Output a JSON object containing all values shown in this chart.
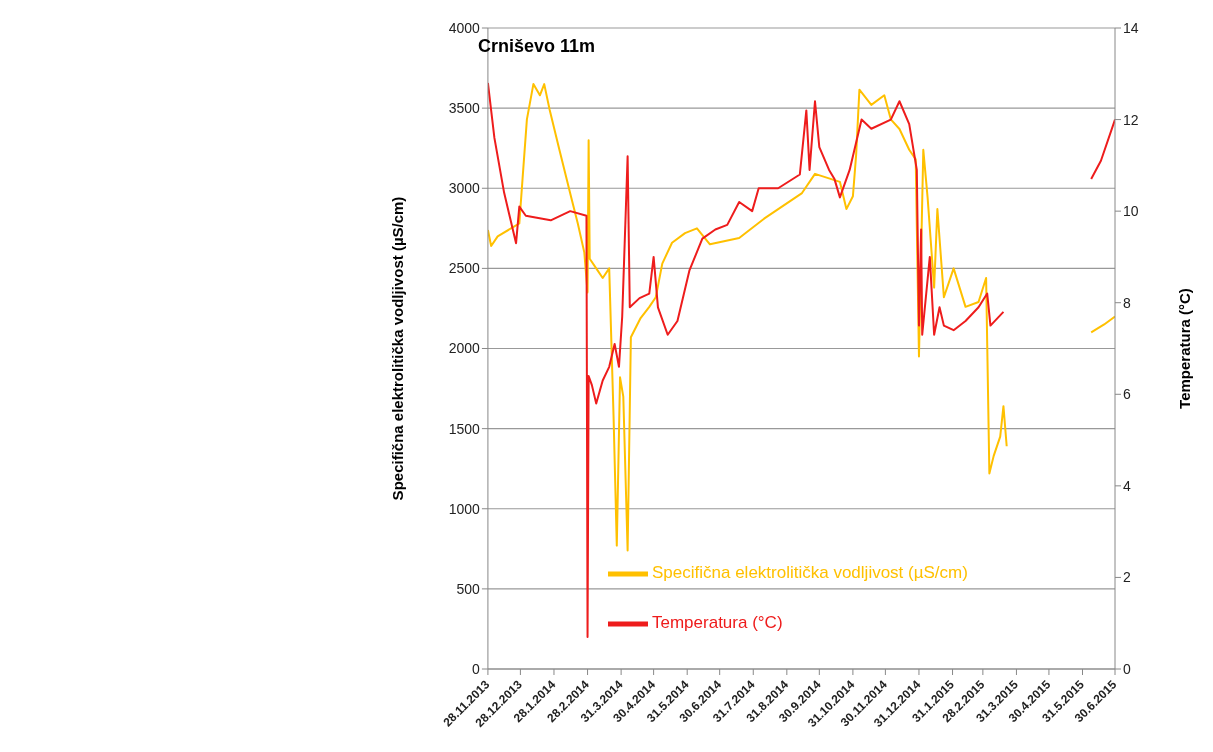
{
  "chart_data": {
    "type": "line",
    "title": "Crniševo 11m",
    "ylabel": "Specifična elektrolitička vodljivost (µS/cm)",
    "y2label": "Temperatura (°C)",
    "xlim": [
      "2013-11-28",
      "2015-06-30"
    ],
    "xticks": [
      {
        "value": "2013-11-28",
        "label": "28.11.2013"
      },
      {
        "value": "2013-12-28",
        "label": "28.12.2013"
      },
      {
        "value": "2014-01-28",
        "label": "28.1.2014"
      },
      {
        "value": "2014-02-28",
        "label": "28.2.2014"
      },
      {
        "value": "2014-03-31",
        "label": "31.3.2014"
      },
      {
        "value": "2014-04-30",
        "label": "30.4.2014"
      },
      {
        "value": "2014-05-31",
        "label": "31.5.2014"
      },
      {
        "value": "2014-06-30",
        "label": "30.6.2014"
      },
      {
        "value": "2014-07-31",
        "label": "31.7.2014"
      },
      {
        "value": "2014-08-31",
        "label": "31.8.2014"
      },
      {
        "value": "2014-09-30",
        "label": "30.9.2014"
      },
      {
        "value": "2014-10-31",
        "label": "31.10.2014"
      },
      {
        "value": "2014-11-30",
        "label": "30.11.2014"
      },
      {
        "value": "2014-12-31",
        "label": "31.12.2014"
      },
      {
        "value": "2015-01-31",
        "label": "31.1.2015"
      },
      {
        "value": "2015-02-28",
        "label": "28.2.2015"
      },
      {
        "value": "2015-03-31",
        "label": "31.3.2015"
      },
      {
        "value": "2015-04-30",
        "label": "30.4.2015"
      },
      {
        "value": "2015-05-31",
        "label": "31.5.2015"
      },
      {
        "value": "2015-06-30",
        "label": "30.6.2015"
      }
    ],
    "ylim": [
      0,
      4000
    ],
    "yticks": [
      0,
      500,
      1000,
      1500,
      2000,
      2500,
      3000,
      3500,
      4000
    ],
    "y2lim": [
      0,
      14
    ],
    "y2ticks": [
      0,
      2,
      4,
      6,
      8,
      10,
      12,
      14
    ],
    "grid": "y",
    "legend": "bottom right",
    "marker": "none",
    "line_style": "solid",
    "series": [
      {
        "name": "Specifična elektrolitička vodljivost (µS/cm)",
        "color": "#ffc000",
        "x": [
          "2013-11-28",
          "2013-12-01",
          "2013-12-07",
          "2013-12-22",
          "2013-12-27",
          "2013-12-30",
          "2014-01-03",
          "2014-01-09",
          "2014-01-15",
          "2014-01-19",
          "2014-01-24",
          "2014-02-02",
          "2014-02-13",
          "2014-02-19",
          "2014-02-25",
          "2014-02-28",
          "2014-03-01",
          "2014-03-02",
          "2014-03-08",
          "2014-03-14",
          "2014-03-20",
          "2014-03-24",
          "2014-03-27",
          "2014-03-30",
          "2014-04-02",
          "2014-04-06",
          "2014-04-09",
          "2014-04-18",
          "2014-04-26",
          "2014-05-02",
          "2014-05-08",
          "2014-05-17",
          "2014-05-29",
          "2014-06-09",
          "2014-06-21",
          "2014-07-18",
          "2014-08-10",
          "2014-09-14",
          "2014-09-26",
          "2014-10-19",
          "2014-10-25",
          "2014-10-31",
          "2014-11-03",
          "2014-11-06",
          "2014-11-17",
          "2014-11-29",
          "2014-12-05",
          "2014-12-13",
          "2014-12-22",
          "2014-12-28",
          "2014-12-31",
          "2015-01-04",
          "2015-01-08",
          "2015-01-14",
          "2015-01-17",
          "2015-01-23",
          "2015-02-01",
          "2015-02-12",
          "2015-02-24",
          "2015-03-03",
          "2015-03-06",
          "2015-03-10",
          "2015-03-16",
          "2015-03-19",
          "2015-03-22",
          "2015-04-30",
          "2015-06-08",
          "2015-06-20",
          "2015-06-30"
        ],
        "values": [
          2740,
          2640,
          2700,
          2760,
          2780,
          3060,
          3430,
          3650,
          3580,
          3650,
          3490,
          3240,
          2940,
          2780,
          2600,
          2350,
          3300,
          2560,
          2500,
          2440,
          2500,
          1580,
          770,
          1820,
          1700,
          740,
          2070,
          2190,
          2260,
          2320,
          2530,
          2660,
          2720,
          2750,
          2650,
          2690,
          2810,
          2970,
          3090,
          3040,
          2870,
          2950,
          3210,
          3615,
          3520,
          3580,
          3430,
          3370,
          3240,
          3180,
          1950,
          3240,
          2940,
          2380,
          2870,
          2320,
          2500,
          2260,
          2290,
          2440,
          1220,
          1330,
          1450,
          1640,
          1390,
          null,
          2100,
          2150,
          2200
        ]
      },
      {
        "name": "Temperatura (°C)",
        "color": "#ee1c1c",
        "axis": "y2",
        "x": [
          "2013-11-28",
          "2013-12-04",
          "2013-12-13",
          "2013-12-24",
          "2013-12-27",
          "2014-01-02",
          "2014-01-25",
          "2014-02-12",
          "2014-02-27",
          "2014-02-28",
          "2014-03-01",
          "2014-03-04",
          "2014-03-08",
          "2014-03-14",
          "2014-03-20",
          "2014-03-25",
          "2014-03-29",
          "2014-04-01",
          "2014-04-06",
          "2014-04-08",
          "2014-04-17",
          "2014-04-26",
          "2014-04-30",
          "2014-05-04",
          "2014-05-13",
          "2014-05-22",
          "2014-06-02",
          "2014-06-14",
          "2014-06-26",
          "2014-07-07",
          "2014-07-18",
          "2014-07-30",
          "2014-08-05",
          "2014-08-23",
          "2014-09-12",
          "2014-09-18",
          "2014-09-21",
          "2014-09-26",
          "2014-09-30",
          "2014-10-09",
          "2014-10-14",
          "2014-10-19",
          "2014-10-28",
          "2014-11-08",
          "2014-11-17",
          "2014-12-05",
          "2014-12-13",
          "2014-12-22",
          "2014-12-29",
          "2014-12-31",
          "2015-01-02",
          "2015-01-03",
          "2015-01-10",
          "2015-01-14",
          "2015-01-19",
          "2015-01-23",
          "2015-02-01",
          "2015-02-12",
          "2015-02-24",
          "2015-03-04",
          "2015-03-07",
          "2015-03-19",
          "2015-04-30",
          "2015-06-08",
          "2015-06-17",
          "2015-06-30"
        ],
        "values": [
          12.8,
          11.6,
          10.4,
          9.3,
          10.1,
          9.9,
          9.8,
          10.0,
          9.9,
          0.7,
          6.4,
          6.2,
          5.8,
          6.3,
          6.6,
          7.1,
          6.6,
          7.7,
          11.2,
          7.9,
          8.1,
          8.2,
          9.0,
          7.9,
          7.3,
          7.6,
          8.7,
          9.4,
          9.6,
          9.7,
          10.2,
          10.0,
          10.5,
          10.5,
          10.8,
          12.2,
          10.9,
          12.4,
          11.4,
          10.9,
          10.7,
          10.3,
          10.9,
          12.0,
          11.8,
          12.0,
          12.4,
          11.9,
          10.9,
          7.5,
          9.6,
          7.3,
          9.0,
          7.3,
          7.9,
          7.5,
          7.4,
          7.6,
          7.9,
          8.2,
          7.5,
          7.8,
          null,
          10.7,
          11.1,
          12.0
        ]
      }
    ]
  }
}
